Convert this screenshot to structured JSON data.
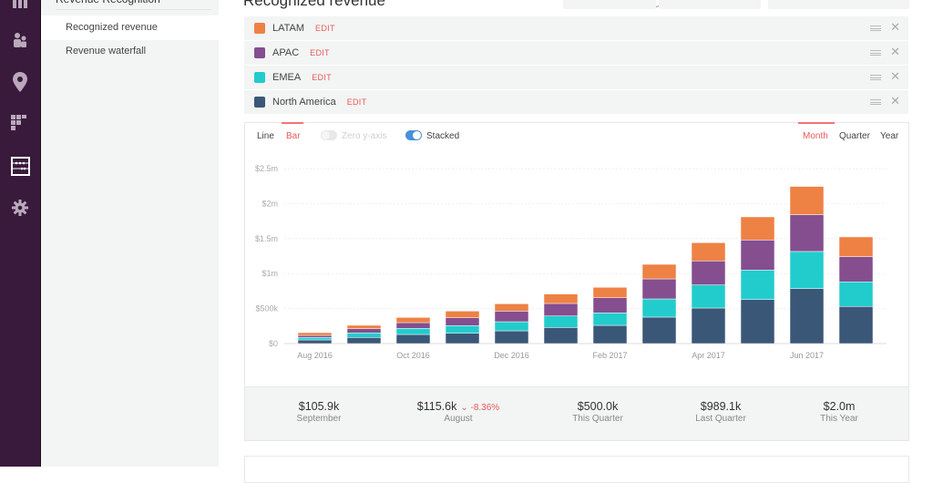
{
  "nav": {
    "rail_icons": [
      "reports-icon",
      "customers-icon",
      "location-icon",
      "cohort-icon",
      "revenue-recognition-icon",
      "settings-icon"
    ],
    "active_icon": "revenue-recognition-icon"
  },
  "subnav": {
    "section_title": "Revenue Recognition",
    "items": [
      {
        "label": "Recognized revenue",
        "active": true
      },
      {
        "label": "Revenue waterfall",
        "active": false
      }
    ]
  },
  "header": {
    "title": "Recognized revenue",
    "currency": "USD"
  },
  "series": [
    {
      "name": "LATAM",
      "color": "#ee8144",
      "edit_label": "EDIT"
    },
    {
      "name": "APAC",
      "color": "#844e8f",
      "edit_label": "EDIT"
    },
    {
      "name": "EMEA",
      "color": "#22cccc",
      "edit_label": "EDIT"
    },
    {
      "name": "North America",
      "color": "#3b5778",
      "edit_label": "EDIT"
    }
  ],
  "controls": {
    "chart_types": [
      "Line",
      "Bar"
    ],
    "active_chart_type": "Bar",
    "zero_y_axis": {
      "label": "Zero y-axis",
      "enabled": false,
      "disabled": true
    },
    "stacked": {
      "label": "Stacked",
      "enabled": true
    },
    "periods": [
      "Month",
      "Quarter",
      "Year"
    ],
    "active_period": "Month"
  },
  "chart_data": {
    "type": "bar",
    "stacked": true,
    "title": "",
    "xlabel": "",
    "ylabel": "",
    "ylim": [
      0,
      2500000
    ],
    "y_ticks": [
      {
        "value": 0,
        "label": "$0"
      },
      {
        "value": 500000,
        "label": "$500k"
      },
      {
        "value": 1000000,
        "label": "$1m"
      },
      {
        "value": 1500000,
        "label": "$1.5m"
      },
      {
        "value": 2000000,
        "label": "$2m"
      },
      {
        "value": 2500000,
        "label": "$2.5m"
      }
    ],
    "grid": true,
    "legend": "top (series list above chart)",
    "categories": [
      "Aug 2016",
      "Sep 2016",
      "Oct 2016",
      "Nov 2016",
      "Dec 2016",
      "Jan 2017",
      "Feb 2017",
      "Mar 2017",
      "Apr 2017",
      "May 2017",
      "Jun 2017",
      "Jul 2017"
    ],
    "x_tick_labels": [
      "Aug 2016",
      "",
      "Oct 2016",
      "",
      "Dec 2016",
      "",
      "Feb 2017",
      "",
      "Apr 2017",
      "",
      "Jun 2017",
      ""
    ],
    "series": [
      {
        "name": "North America",
        "color": "#3b5778",
        "values": [
          52000,
          87000,
          130000,
          148000,
          182000,
          230000,
          260000,
          378000,
          508000,
          629000,
          786000,
          530000
        ]
      },
      {
        "name": "EMEA",
        "color": "#22cccc",
        "values": [
          35000,
          65000,
          87000,
          108000,
          130000,
          165000,
          178000,
          260000,
          330000,
          421000,
          530000,
          352000
        ]
      },
      {
        "name": "APAC",
        "color": "#844e8f",
        "values": [
          30000,
          61000,
          82000,
          113000,
          152000,
          178000,
          217000,
          286000,
          343000,
          430000,
          525000,
          360000
        ]
      },
      {
        "name": "LATAM",
        "color": "#ee8144",
        "values": [
          39000,
          48000,
          74000,
          95000,
          104000,
          135000,
          148000,
          208000,
          260000,
          330000,
          404000,
          282000
        ]
      }
    ]
  },
  "stats": [
    {
      "value": "$105.9k",
      "label": "September"
    },
    {
      "value": "$115.6k",
      "label": "August",
      "change": "-8.36%",
      "change_dir": "down"
    },
    {
      "value": "$500.0k",
      "label": "This Quarter"
    },
    {
      "value": "$989.1k",
      "label": "Last Quarter"
    },
    {
      "value": "$2.0m",
      "label": "This Year"
    }
  ],
  "colors": {
    "accent": "#e85b5b",
    "sidebar": "#3a1a3c",
    "toggle_on": "#4a90d9"
  }
}
